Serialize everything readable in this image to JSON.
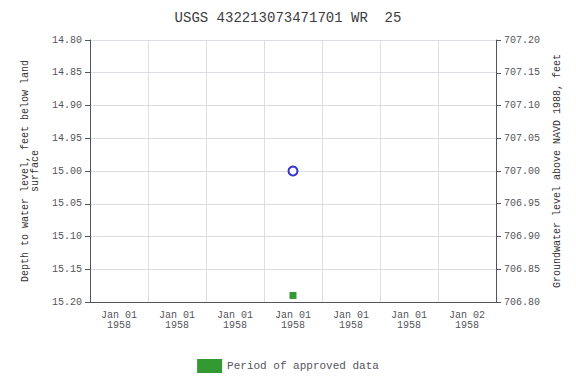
{
  "chart_data": {
    "type": "scatter",
    "title": "USGS 432213073471701 WR  25",
    "categories": [
      "Jan 01\n1958",
      "Jan 01\n1958",
      "Jan 01\n1958",
      "Jan 01\n1958",
      "Jan 01\n1958",
      "Jan 01\n1958",
      "Jan 02\n1958"
    ],
    "ylabel": "Depth to water level, feet below land\nsurface",
    "y2label": "Groundwater level above NAVD 1988, feet",
    "ylim": [
      15.2,
      14.8
    ],
    "yticks": [
      {
        "value": 14.8,
        "label": "14.80"
      },
      {
        "value": 14.85,
        "label": "14.85"
      },
      {
        "value": 14.9,
        "label": "14.90"
      },
      {
        "value": 14.95,
        "label": "14.95"
      },
      {
        "value": 15.0,
        "label": "15.00"
      },
      {
        "value": 15.05,
        "label": "15.05"
      },
      {
        "value": 15.1,
        "label": "15.10"
      },
      {
        "value": 15.15,
        "label": "15.15"
      },
      {
        "value": 15.2,
        "label": "15.20"
      }
    ],
    "y2lim": [
      706.8,
      707.2
    ],
    "y2ticks": [
      {
        "value": 707.2,
        "label": "707.20"
      },
      {
        "value": 707.15,
        "label": "707.15"
      },
      {
        "value": 707.1,
        "label": "707.10"
      },
      {
        "value": 707.05,
        "label": "707.05"
      },
      {
        "value": 707.0,
        "label": "707.00"
      },
      {
        "value": 706.95,
        "label": "706.95"
      },
      {
        "value": 706.9,
        "label": "706.90"
      },
      {
        "value": 706.85,
        "label": "706.85"
      },
      {
        "value": 706.8,
        "label": "706.80"
      }
    ],
    "grid": true,
    "legend": "bottom",
    "series": [
      {
        "color": "#0000cc",
        "marker": "open_circle",
        "values": [
          null,
          null,
          null,
          15.0,
          null,
          null,
          null
        ]
      },
      {
        "name": "Period of approved data",
        "color": "#008000",
        "marker": "square",
        "values": [
          null,
          null,
          null,
          15.19,
          null,
          null,
          null
        ]
      }
    ]
  }
}
